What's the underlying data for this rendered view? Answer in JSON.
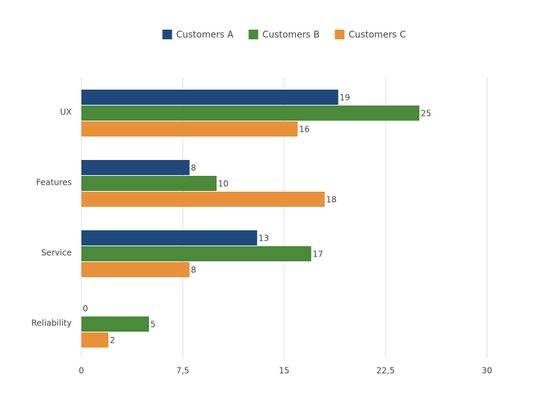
{
  "chart_data": {
    "type": "bar",
    "orientation": "horizontal",
    "categories": [
      "UX",
      "Features",
      "Service",
      "Reliability"
    ],
    "series": [
      {
        "name": "Customers A",
        "color": "#1f497d",
        "values": [
          19,
          8,
          13,
          0
        ]
      },
      {
        "name": "Customers B",
        "color": "#4a8a3a",
        "values": [
          25,
          10,
          17,
          5
        ]
      },
      {
        "name": "Customers C",
        "color": "#e8913a",
        "values": [
          16,
          18,
          8,
          2
        ]
      }
    ],
    "xlim": [
      0,
      30
    ],
    "xticks": [
      0,
      {
        "value": 7.5,
        "label": "7,5"
      },
      15,
      {
        "value": 22.5,
        "label": "22,5"
      },
      30
    ],
    "grid": true,
    "legend": "top",
    "data_labels": true
  }
}
